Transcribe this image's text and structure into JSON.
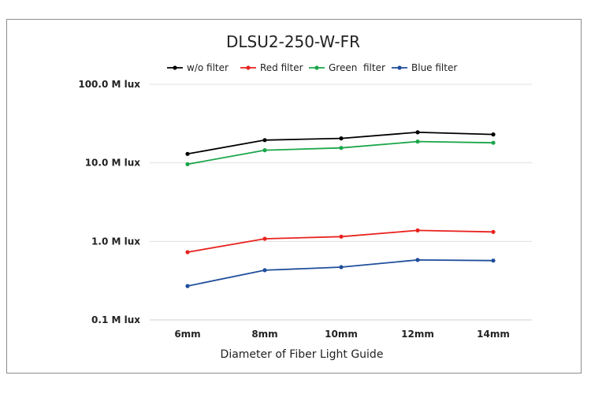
{
  "chart_data": {
    "type": "line",
    "title": "DLSU2-250-W-FR",
    "xlabel": "Diameter of Fiber Light Guide",
    "ylabel": "",
    "yscale": "log",
    "ylim": [
      0.1,
      100.0
    ],
    "y_ticks": [
      {
        "value": 100.0,
        "label": "100.0 M lux"
      },
      {
        "value": 10.0,
        "label": "10.0 M lux"
      },
      {
        "value": 1.0,
        "label": "1.0 M lux"
      },
      {
        "value": 0.1,
        "label": "0.1 M lux"
      }
    ],
    "categories": [
      "6mm",
      "8mm",
      "10mm",
      "12mm",
      "14mm"
    ],
    "grid": true,
    "legend_position": "top",
    "series": [
      {
        "name": "w/o filter",
        "color": "#000000",
        "values": [
          13.0,
          19.5,
          20.5,
          24.5,
          23.0
        ]
      },
      {
        "name": "Red filter",
        "color": "#e8231f",
        "values": [
          0.73,
          1.08,
          1.15,
          1.38,
          1.32
        ]
      },
      {
        "name": "Green  filter",
        "color": "#1aa64a",
        "values": [
          9.6,
          14.5,
          15.5,
          18.7,
          18.0
        ]
      },
      {
        "name": "Blue filter",
        "color": "#1f4e9c",
        "values": [
          0.27,
          0.43,
          0.47,
          0.58,
          0.57
        ]
      }
    ]
  }
}
